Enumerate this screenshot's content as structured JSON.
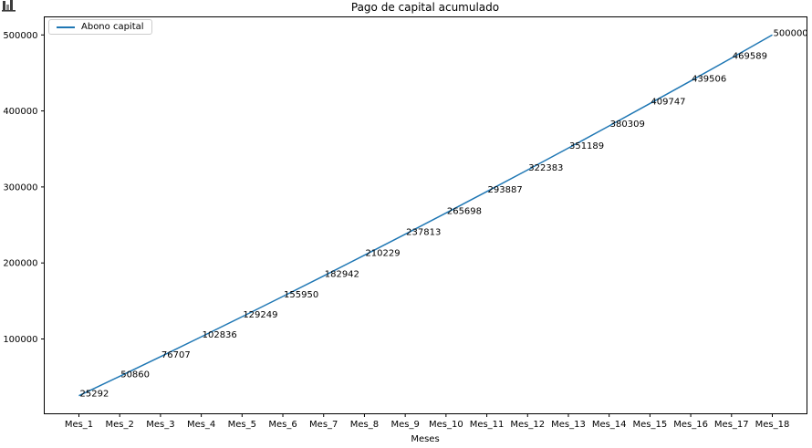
{
  "window": {
    "corner_icon": "bar-chart-icon"
  },
  "chart_data": {
    "type": "line",
    "title": "Pago de capital acumulado",
    "xlabel": "Meses",
    "ylabel": "",
    "categories": [
      "Mes_1",
      "Mes_2",
      "Mes_3",
      "Mes_4",
      "Mes_5",
      "Mes_6",
      "Mes_7",
      "Mes_8",
      "Mes_9",
      "Mes_10",
      "Mes_11",
      "Mes_12",
      "Mes_13",
      "Mes_14",
      "Mes_15",
      "Mes_16",
      "Mes_17",
      "Mes_18"
    ],
    "series": [
      {
        "name": "Abono capital",
        "color": "#1f77b4",
        "values": [
          25292,
          50860,
          76707,
          102836,
          129249,
          155950,
          182942,
          210229,
          237813,
          265698,
          293887,
          322383,
          351189,
          380309,
          409747,
          439506,
          469589,
          500000
        ]
      }
    ],
    "point_labels_shown": true,
    "yticks": [
      100000,
      200000,
      300000,
      400000,
      500000
    ],
    "axis_margin_fraction": 0.05,
    "grid": false,
    "legend": {
      "position": "upper-left",
      "entries": [
        "Abono capital"
      ]
    },
    "colors": {
      "line": "#1f77b4",
      "text": "#000000",
      "frame": "#000000",
      "legend_border": "#cccccc"
    }
  }
}
